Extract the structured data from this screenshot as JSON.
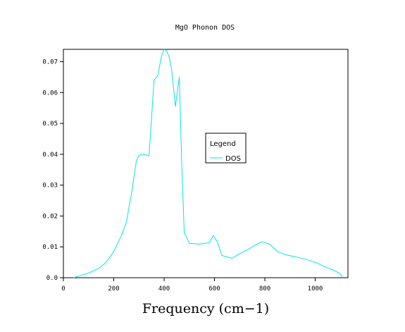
{
  "chart_data": {
    "type": "line",
    "title": "MgO Phonon DOS",
    "xlabel": "Frequency (cm−1)",
    "ylabel": "",
    "xlim": [
      0,
      1130
    ],
    "ylim": [
      0,
      0.074
    ],
    "xticks": [
      0,
      200,
      400,
      600,
      800,
      1000
    ],
    "xtick_labels": [
      "0",
      "200",
      "400",
      "600",
      "800",
      "1000"
    ],
    "yticks": [
      0,
      0.01,
      0.02,
      0.03,
      0.04,
      0.05,
      0.06,
      0.07
    ],
    "ytick_labels": [
      "0.0",
      "0.01",
      "0.02",
      "0.03",
      "0.04",
      "0.05",
      "0.06",
      "0.07"
    ],
    "grid": false,
    "legend": {
      "title": "Legend",
      "placement": "center-right"
    },
    "series": [
      {
        "name": "DOS",
        "color": "#00e5ee",
        "x": [
          40,
          60,
          100,
          140,
          170,
          200,
          230,
          250,
          270,
          290,
          300,
          310,
          320,
          340,
          360,
          375,
          390,
          400,
          410,
          420,
          430,
          445,
          460,
          470,
          480,
          490,
          500,
          520,
          540,
          560,
          580,
          595,
          610,
          630,
          670,
          700,
          730,
          760,
          790,
          820,
          850,
          880,
          920,
          960,
          1000,
          1040,
          1080,
          1100,
          1110
        ],
        "values": [
          0.0,
          0.0005,
          0.0015,
          0.003,
          0.005,
          0.0085,
          0.0135,
          0.018,
          0.027,
          0.038,
          0.0395,
          0.04,
          0.04,
          0.0395,
          0.064,
          0.0655,
          0.072,
          0.074,
          0.0735,
          0.0715,
          0.0675,
          0.0555,
          0.065,
          0.037,
          0.0145,
          0.013,
          0.0111,
          0.011,
          0.0109,
          0.0111,
          0.0114,
          0.0137,
          0.0118,
          0.0072,
          0.0063,
          0.0078,
          0.009,
          0.0105,
          0.0117,
          0.0108,
          0.0085,
          0.0075,
          0.0068,
          0.006,
          0.005,
          0.0035,
          0.0022,
          0.0012,
          0.0
        ]
      }
    ]
  }
}
